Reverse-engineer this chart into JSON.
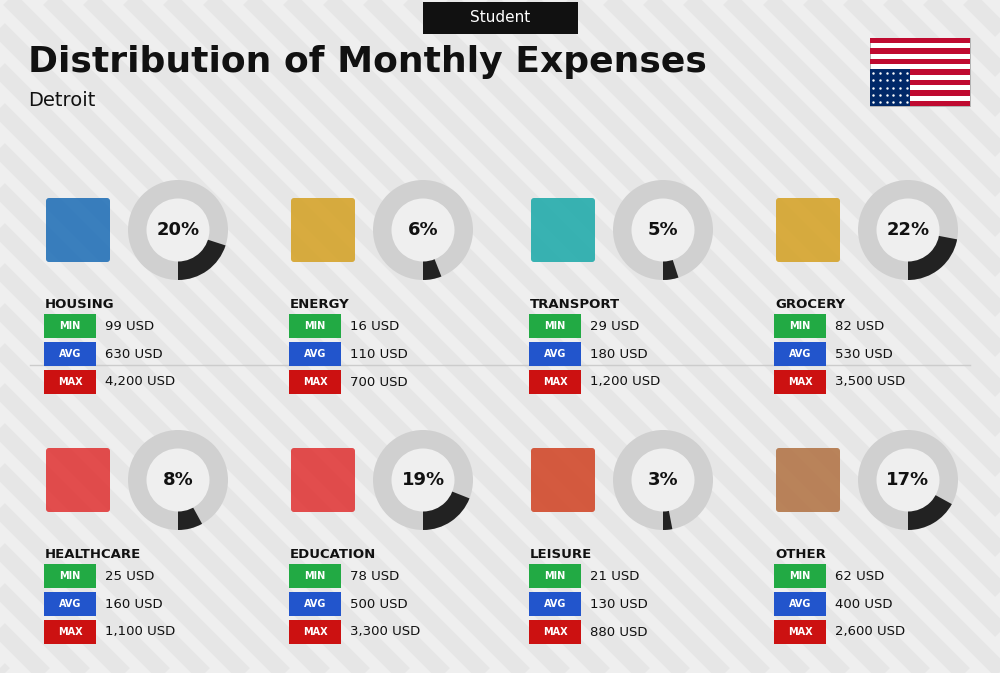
{
  "title": "Distribution of Monthly Expenses",
  "subtitle": "Detroit",
  "header_label": "Student",
  "bg_color": "#efefef",
  "title_color": "#111111",
  "categories": [
    {
      "name": "HOUSING",
      "pct": 20,
      "min": "99 USD",
      "avg": "630 USD",
      "max": "4,200 USD",
      "row": 0,
      "col": 0,
      "icon_color": "#1a6bb5"
    },
    {
      "name": "ENERGY",
      "pct": 6,
      "min": "16 USD",
      "avg": "110 USD",
      "max": "700 USD",
      "row": 0,
      "col": 1,
      "icon_color": "#e8a020"
    },
    {
      "name": "TRANSPORT",
      "pct": 5,
      "min": "29 USD",
      "avg": "180 USD",
      "max": "1,200 USD",
      "row": 0,
      "col": 2,
      "icon_color": "#1ab5b5"
    },
    {
      "name": "GROCERY",
      "pct": 22,
      "min": "82 USD",
      "avg": "530 USD",
      "max": "3,500 USD",
      "row": 0,
      "col": 3,
      "icon_color": "#e8a020"
    },
    {
      "name": "HEALTHCARE",
      "pct": 8,
      "min": "25 USD",
      "avg": "160 USD",
      "max": "1,100 USD",
      "row": 1,
      "col": 0,
      "icon_color": "#e83030"
    },
    {
      "name": "EDUCATION",
      "pct": 19,
      "min": "78 USD",
      "avg": "500 USD",
      "max": "3,300 USD",
      "row": 1,
      "col": 1,
      "icon_color": "#e83030"
    },
    {
      "name": "LEISURE",
      "pct": 3,
      "min": "21 USD",
      "avg": "130 USD",
      "max": "880 USD",
      "row": 1,
      "col": 2,
      "icon_color": "#e83030"
    },
    {
      "name": "OTHER",
      "pct": 17,
      "min": "62 USD",
      "avg": "400 USD",
      "max": "2,600 USD",
      "row": 1,
      "col": 3,
      "icon_color": "#b87040"
    }
  ],
  "min_color": "#22aa44",
  "avg_color": "#2255cc",
  "max_color": "#cc1111",
  "label_text_color": "#ffffff",
  "circle_bg": "#d0d0d0",
  "circle_accent": "#222222",
  "stripe_color": "#e0e0e0"
}
